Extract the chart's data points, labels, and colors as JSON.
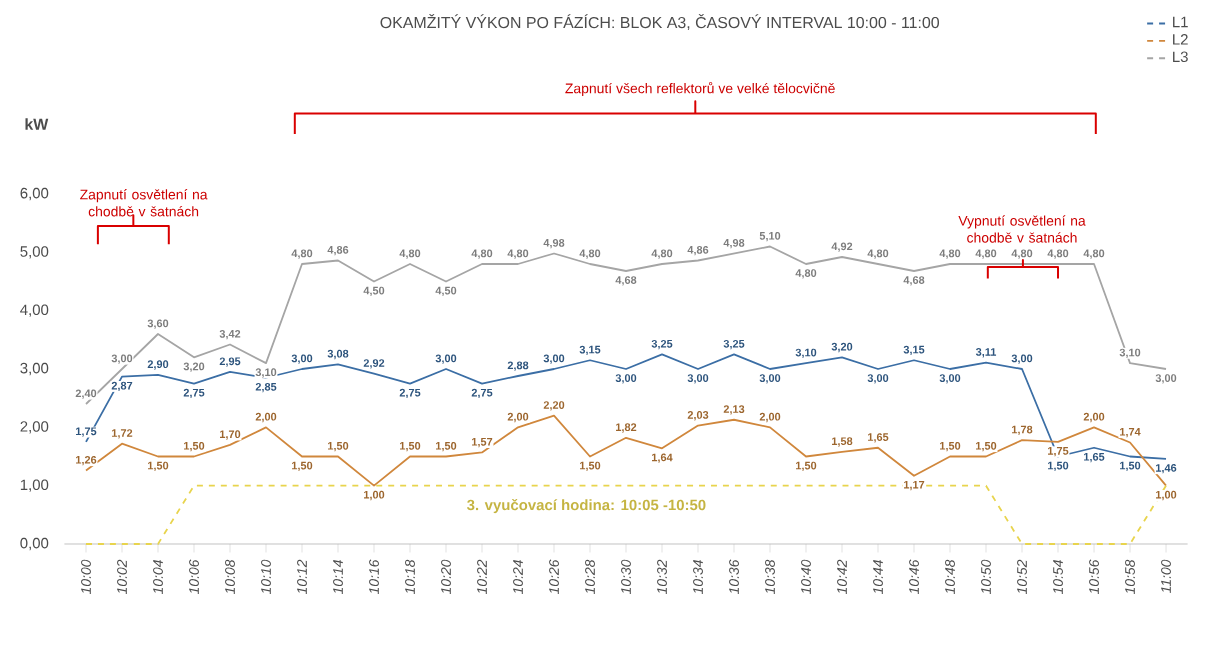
{
  "chart_data": {
    "type": "line",
    "title": "OKAMŽITÝ VÝKON PO FÁZÍCH: BLOK A3, ČASOVÝ INTERVAL 10:00 - 11:00",
    "ylabel": "kW",
    "categories": [
      "10:00",
      "10:02",
      "10:04",
      "10:06",
      "10:08",
      "10:10",
      "10:12",
      "10:14",
      "10:16",
      "10:18",
      "10:20",
      "10:22",
      "10:24",
      "10:26",
      "10:28",
      "10:30",
      "10:32",
      "10:34",
      "10:36",
      "10:38",
      "10:40",
      "10:42",
      "10:44",
      "10:46",
      "10:48",
      "10:50",
      "10:52",
      "10:54",
      "10:56",
      "10:58",
      "11:00"
    ],
    "series": [
      {
        "name": "L1",
        "color": "#3b6ea5",
        "values": [
          1.75,
          2.87,
          2.9,
          2.75,
          2.95,
          2.85,
          3.0,
          3.08,
          2.92,
          2.75,
          3.0,
          2.75,
          2.88,
          3.0,
          3.15,
          3.0,
          3.25,
          3.0,
          3.25,
          3.0,
          3.1,
          3.2,
          3.0,
          3.15,
          3.0,
          3.11,
          3.0,
          1.5,
          1.65,
          1.5,
          1.46
        ],
        "value_labels": [
          "1,75",
          "2,87",
          "2,90",
          "2,75",
          "2,95",
          "2,85",
          "3,00",
          "3,08",
          "2,92",
          "2,75",
          "3,00",
          "2,75",
          "2,88",
          "3,00",
          "3,15",
          "3,00",
          "3,25",
          "3,00",
          "3,25",
          "3,00",
          "3,10",
          "3,20",
          "3,00",
          "3,15",
          "3,00",
          "3,11",
          "3,00",
          "1,50",
          "1,65",
          "1,50",
          "1,46"
        ]
      },
      {
        "name": "L2",
        "color": "#d0873c",
        "values": [
          1.26,
          1.72,
          1.5,
          1.5,
          1.7,
          2.0,
          1.5,
          1.5,
          1.0,
          1.5,
          1.5,
          1.57,
          2.0,
          2.2,
          1.5,
          1.82,
          1.64,
          2.03,
          2.13,
          2.0,
          1.5,
          1.58,
          1.65,
          1.17,
          1.5,
          1.5,
          1.78,
          1.75,
          2.0,
          1.74,
          1.0
        ],
        "value_labels": [
          "1,26",
          "1,72",
          "1,50",
          "1,50",
          "1,70",
          "2,00",
          "1,50",
          "1,50",
          "1,00",
          "1,50",
          "1,50",
          "1,57",
          "2,00",
          "2,20",
          "1,50",
          "1,82",
          "1,64",
          "2,03",
          "2,13",
          "2,00",
          "1,50",
          "1,58",
          "1,65",
          "1,17",
          "1,50",
          "1,50",
          "1,78",
          "1,75",
          "2,00",
          "1,74",
          "1,00"
        ]
      },
      {
        "name": "L3",
        "color": "#a5a5a5",
        "values": [
          2.4,
          3.0,
          3.6,
          3.2,
          3.42,
          3.1,
          4.8,
          4.86,
          4.5,
          4.8,
          4.5,
          4.8,
          4.8,
          4.98,
          4.8,
          4.68,
          4.8,
          4.86,
          4.98,
          5.1,
          4.8,
          4.92,
          4.8,
          4.68,
          4.8,
          4.8,
          4.8,
          4.8,
          4.8,
          3.1,
          3.0
        ],
        "value_labels": [
          "2,40",
          "3,00",
          "3,60",
          "3,20",
          "3,42",
          "3,10",
          "4,80",
          "4,86",
          "4,50",
          "4,80",
          "4,50",
          "4,80",
          "4,80",
          "4,98",
          "4,80",
          "4,68",
          "4,80",
          "4,86",
          "4,98",
          "5,10",
          "4,80",
          "4,92",
          "4,80",
          "4,68",
          "4,80",
          "4,80",
          "4,80",
          "4,80",
          "4,80",
          "3,10",
          "3,00"
        ]
      },
      {
        "color": "#e8d44d",
        "line_style": "dashed",
        "values": [
          0,
          0,
          0,
          1,
          1,
          1,
          1,
          1,
          1,
          1,
          1,
          1,
          1,
          1,
          1,
          1,
          1,
          1,
          1,
          1,
          1,
          1,
          1,
          1,
          1,
          1,
          0,
          0,
          0,
          0,
          1
        ]
      }
    ],
    "ylim": [
      0,
      6
    ],
    "yticks": [
      {
        "value": 0,
        "label": "0,00"
      },
      {
        "value": 1,
        "label": "1,00"
      },
      {
        "value": 2,
        "label": "2,00"
      },
      {
        "value": 3,
        "label": "3,00"
      },
      {
        "value": 4,
        "label": "4,00"
      },
      {
        "value": 5,
        "label": "5,00"
      },
      {
        "value": 6,
        "label": "6,00"
      }
    ],
    "legend": "top right",
    "marker": "none",
    "grid": false,
    "annotations": [
      "Zapnutí osvětlení na chodbě v šatnách",
      "Zapnutí všech reflektorů ve velké tělocvičně",
      "Vypnutí osvětlení na chodbě v šatnách",
      "3. vyučovací hodina: 10:05 -10:50"
    ]
  }
}
